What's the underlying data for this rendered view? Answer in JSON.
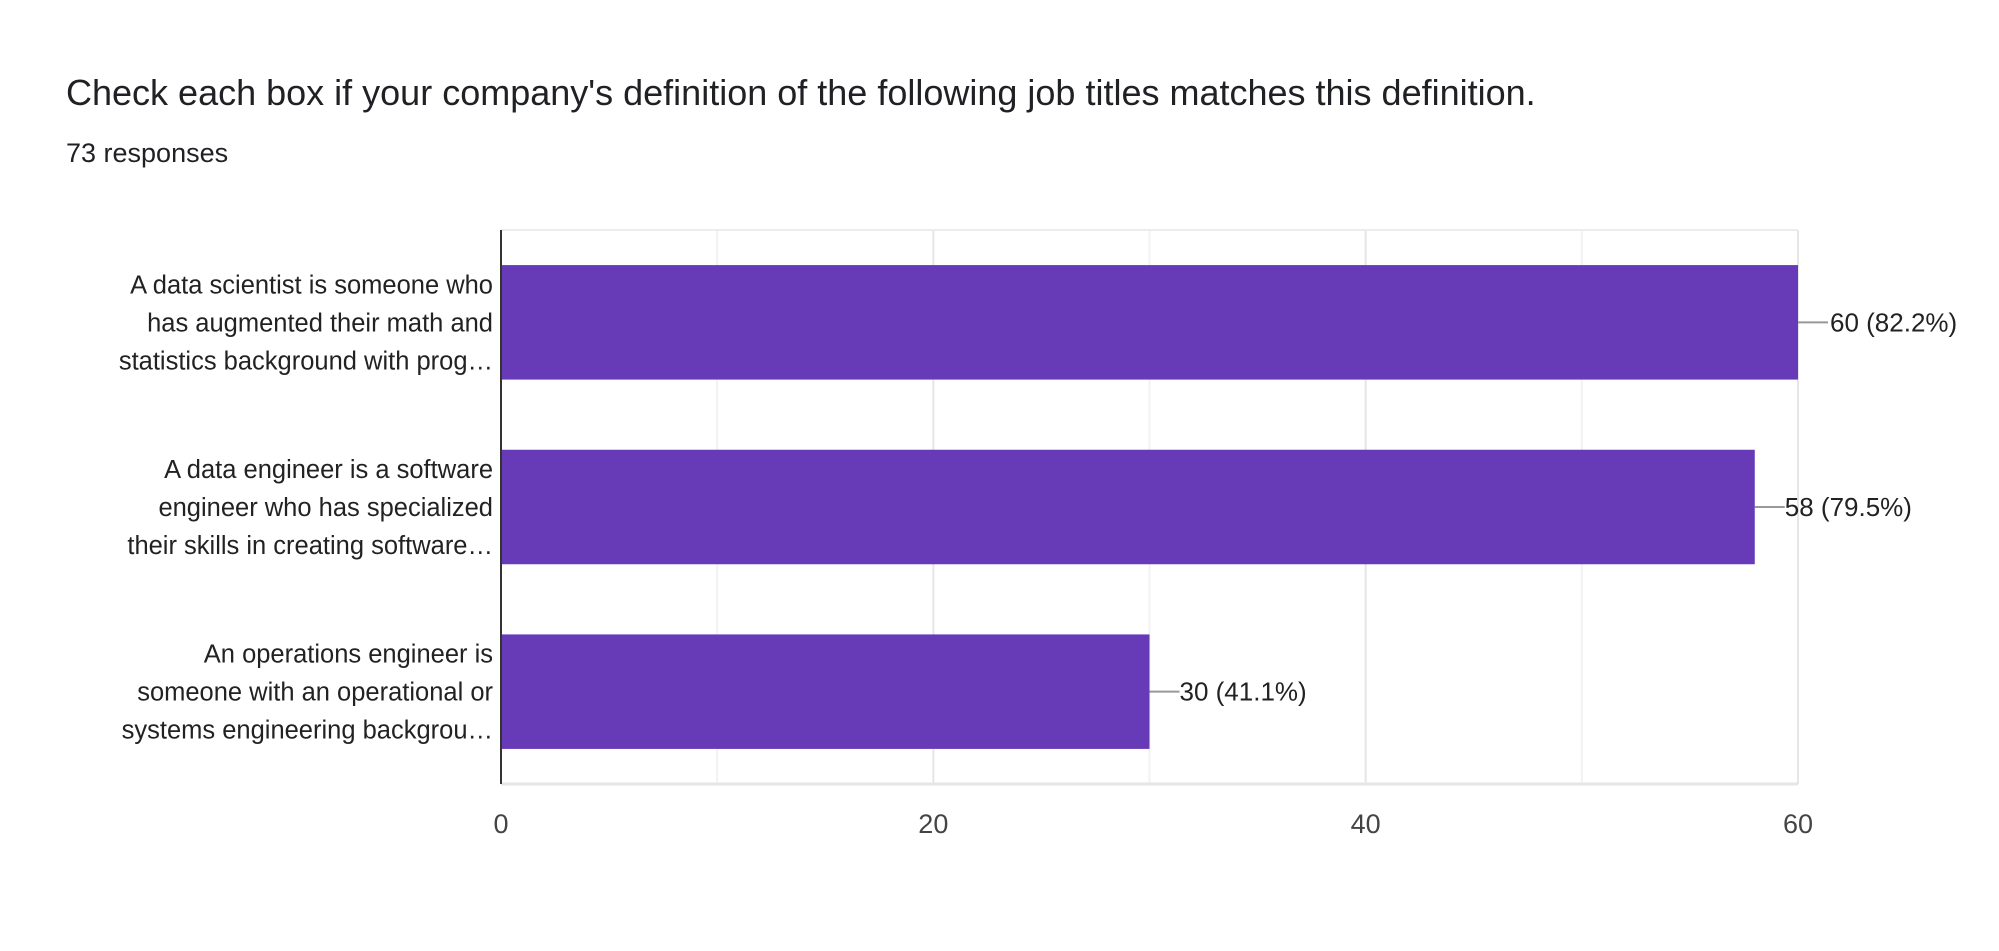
{
  "chart_data": {
    "type": "bar",
    "orientation": "horizontal",
    "title": "Check each box if your company's definition of the following job titles matches this definition.",
    "subtitle": "73 responses",
    "categories": [
      [
        "A data scientist is someone who",
        "has augmented their math and",
        "statistics background with prog…"
      ],
      [
        "A data engineer is a software",
        "engineer who has specialized",
        "their skills in creating software…"
      ],
      [
        "An operations engineer is",
        "someone with an operational or",
        "systems engineering backgrou…"
      ]
    ],
    "values": [
      60,
      58,
      30
    ],
    "data_labels": [
      "60 (82.2%)",
      "58 (79.5%)",
      "30 (41.1%)"
    ],
    "xlim": [
      0,
      60
    ],
    "xticks": [
      0,
      20,
      40,
      60
    ],
    "minor_grid_step": 10,
    "grid": true,
    "bar_color": "#673ab7"
  }
}
